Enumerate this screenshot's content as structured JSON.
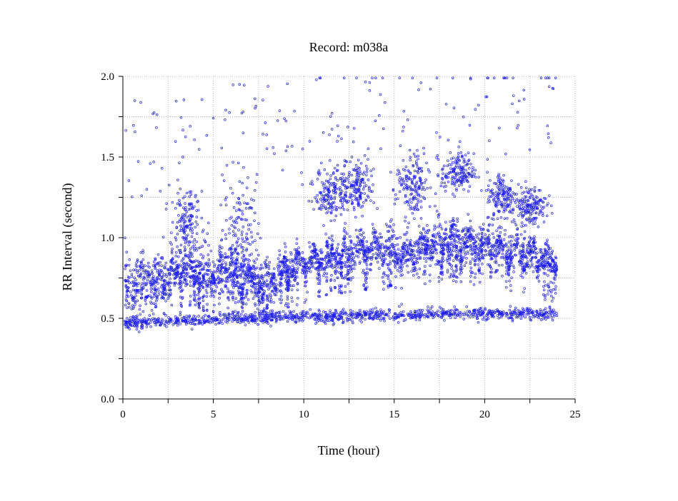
{
  "chart_data": {
    "type": "scatter",
    "title": "Record:  m038a",
    "xlabel": "Time (hour)",
    "ylabel": "RR Interval (second)",
    "xlim": [
      0,
      25
    ],
    "ylim": [
      0,
      2
    ],
    "x_ticks": [
      "0",
      "5",
      "10",
      "15",
      "20",
      "25"
    ],
    "y_ticks": [
      "0.0",
      "0.5",
      "1.0",
      "1.5",
      "2.0"
    ],
    "grid": true,
    "marker_color": "#1e1ef0",
    "x_data_range": [
      0.1,
      24.0
    ],
    "series": [
      {
        "description_note": "main RR band centers (hour, seconds, spread)",
        "main_band": [
          [
            0.2,
            0.7,
            0.15
          ],
          [
            1.0,
            0.72,
            0.14
          ],
          [
            2.0,
            0.74,
            0.12
          ],
          [
            3.0,
            0.78,
            0.1
          ],
          [
            4.0,
            0.8,
            0.12
          ],
          [
            5.0,
            0.78,
            0.12
          ],
          [
            6.0,
            0.76,
            0.12
          ],
          [
            7.0,
            0.72,
            0.12
          ],
          [
            8.0,
            0.72,
            0.1
          ],
          [
            9.0,
            0.8,
            0.08
          ],
          [
            10.0,
            0.84,
            0.08
          ],
          [
            11.0,
            0.86,
            0.08
          ],
          [
            12.0,
            0.9,
            0.08
          ],
          [
            13.0,
            0.92,
            0.08
          ],
          [
            14.0,
            0.93,
            0.08
          ],
          [
            15.0,
            0.92,
            0.1
          ],
          [
            16.0,
            0.9,
            0.1
          ],
          [
            17.0,
            0.96,
            0.1
          ],
          [
            18.0,
            0.98,
            0.1
          ],
          [
            19.0,
            0.97,
            0.1
          ],
          [
            20.0,
            0.94,
            0.1
          ],
          [
            21.0,
            0.92,
            0.1
          ],
          [
            22.0,
            0.9,
            0.08
          ],
          [
            23.0,
            0.88,
            0.08
          ],
          [
            24.0,
            0.84,
            0.08
          ]
        ],
        "lower_band": [
          [
            0.2,
            0.47
          ],
          [
            2.0,
            0.48
          ],
          [
            4.0,
            0.49
          ],
          [
            6.0,
            0.5
          ],
          [
            8.0,
            0.5
          ],
          [
            10.0,
            0.51
          ],
          [
            12.0,
            0.51
          ],
          [
            14.0,
            0.52
          ],
          [
            16.0,
            0.52
          ],
          [
            18.0,
            0.53
          ],
          [
            20.0,
            0.53
          ],
          [
            22.0,
            0.53
          ],
          [
            24.0,
            0.53
          ]
        ],
        "upper_cluster": [
          [
            3.5,
            1.05,
            0.12
          ],
          [
            6.5,
            1.0,
            0.18
          ],
          [
            11.5,
            1.28,
            0.08
          ],
          [
            13.0,
            1.32,
            0.08
          ],
          [
            16.0,
            1.3,
            0.1
          ],
          [
            18.5,
            1.4,
            0.06
          ],
          [
            21.0,
            1.25,
            0.08
          ],
          [
            22.5,
            1.2,
            0.06
          ]
        ]
      }
    ]
  }
}
